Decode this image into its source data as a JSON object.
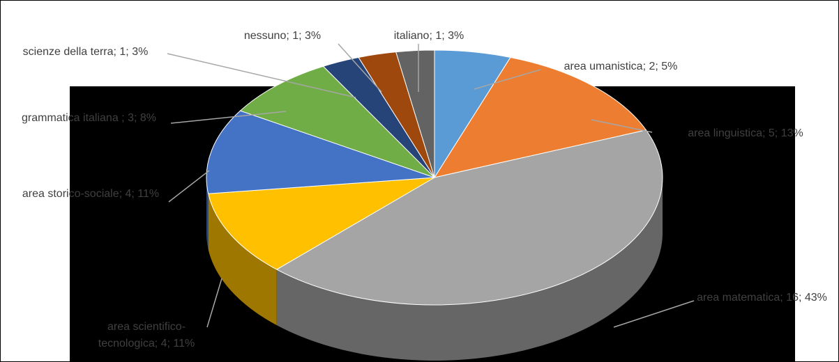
{
  "chart_data": {
    "type": "pie3d",
    "value_labels": [
      "area umanistica; 2; 5%",
      "area linguistica; 5; 13%",
      "area matematica; 16; 43%",
      "area scientifico-tecnologica; 4; 11%",
      "area storico-sociale; 4; 11%",
      "grammatica italiana ; 3; 8%",
      "scienze della terra; 1; 3%",
      "nessuno; 1; 3%",
      "italiano; 1; 3%"
    ],
    "values": [
      2,
      5,
      16,
      4,
      4,
      3,
      1,
      1,
      1
    ],
    "colors": [
      "#5B9BD5",
      "#ED7D31",
      "#A5A5A5",
      "#FFC000",
      "#4472C4",
      "#70AD47",
      "#264478",
      "#9E480E",
      "#636363"
    ]
  }
}
